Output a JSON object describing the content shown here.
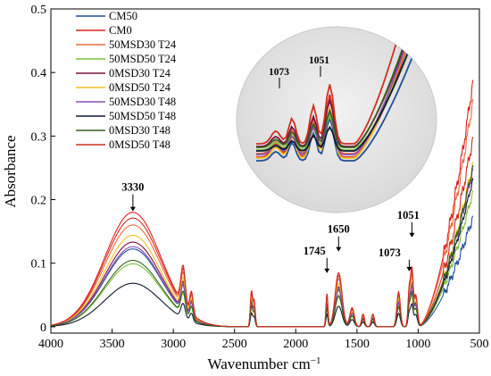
{
  "chart_data": {
    "type": "line",
    "xlabel": "Wavenumber cm",
    "xlabel_sup": "−1",
    "ylabel": "Absorbance",
    "xlim": [
      4000,
      500
    ],
    "ylim": [
      -0.01,
      0.5
    ],
    "x_ticks": [
      "4000",
      "3500",
      "3000",
      "2500",
      "2000",
      "1500",
      "1000",
      "500"
    ],
    "x_tick_values": [
      4000,
      3500,
      3000,
      2500,
      2000,
      1500,
      1000,
      500
    ],
    "y_ticks": [
      "0",
      "0.1",
      "0.2",
      "0.3",
      "0.4",
      "0.5"
    ],
    "y_tick_values": [
      0,
      0.1,
      0.2,
      0.3,
      0.4,
      0.5
    ],
    "grid": false,
    "legend_position": "top-left",
    "annotations": [
      {
        "label": "3330",
        "x": 3330,
        "y": 0.183
      },
      {
        "label": "1745",
        "x": 1745,
        "y": 0.083
      },
      {
        "label": "1650",
        "x": 1650,
        "y": 0.117
      },
      {
        "label": "1073",
        "x": 1073,
        "y": 0.097
      },
      {
        "label": "1051",
        "x": 1051,
        "y": 0.142
      }
    ],
    "inset_annotations": [
      {
        "label": "1073"
      },
      {
        "label": "1051"
      }
    ],
    "series": [
      {
        "name": "CM50",
        "color": "#1f4e9a",
        "scale": 0.68,
        "tail": 0.175
      },
      {
        "name": "CM0",
        "color": "#e02020",
        "scale": 1.0,
        "tail": 0.39
      },
      {
        "name": "50MSD30 T24",
        "color": "#f06a3a",
        "scale": 0.89,
        "tail": 0.36
      },
      {
        "name": "50MSD50 T24",
        "color": "#7cc43a",
        "scale": 0.55,
        "tail": 0.215
      },
      {
        "name": "0MSD30 T24",
        "color": "#7a1040",
        "scale": 0.74,
        "tail": 0.255
      },
      {
        "name": "0MSD50 T24",
        "color": "#f0c020",
        "scale": 0.8,
        "tail": 0.26
      },
      {
        "name": "50MSD30 T48",
        "color": "#8a50b0",
        "scale": 0.7,
        "tail": 0.25
      },
      {
        "name": "50MSD50 T48",
        "color": "#101830",
        "scale": 0.38,
        "tail": 0.235
      },
      {
        "name": "0MSD30 T48",
        "color": "#3a6020",
        "scale": 0.58,
        "tail": 0.255
      },
      {
        "name": "0MSD50 T48",
        "color": "#d03020",
        "scale": 0.95,
        "tail": 0.3
      }
    ],
    "peaks": [
      {
        "center": 3330,
        "width": 230,
        "height": 0.18
      },
      {
        "center": 2920,
        "width": 18,
        "height": 0.06
      },
      {
        "center": 2852,
        "width": 14,
        "height": 0.035
      },
      {
        "center": 2362,
        "width": 9,
        "height": 0.055
      },
      {
        "center": 2340,
        "width": 9,
        "height": 0.04
      },
      {
        "center": 1745,
        "width": 8,
        "height": 0.052
      },
      {
        "center": 1650,
        "width": 28,
        "height": 0.085
      },
      {
        "center": 1540,
        "width": 18,
        "height": 0.03
      },
      {
        "center": 1450,
        "width": 12,
        "height": 0.02
      },
      {
        "center": 1370,
        "width": 12,
        "height": 0.02
      },
      {
        "center": 1160,
        "width": 14,
        "height": 0.055
      },
      {
        "center": 1073,
        "width": 10,
        "height": 0.06
      },
      {
        "center": 1051,
        "width": 10,
        "height": 0.085
      },
      {
        "center": 1020,
        "width": 14,
        "height": 0.05
      }
    ]
  }
}
